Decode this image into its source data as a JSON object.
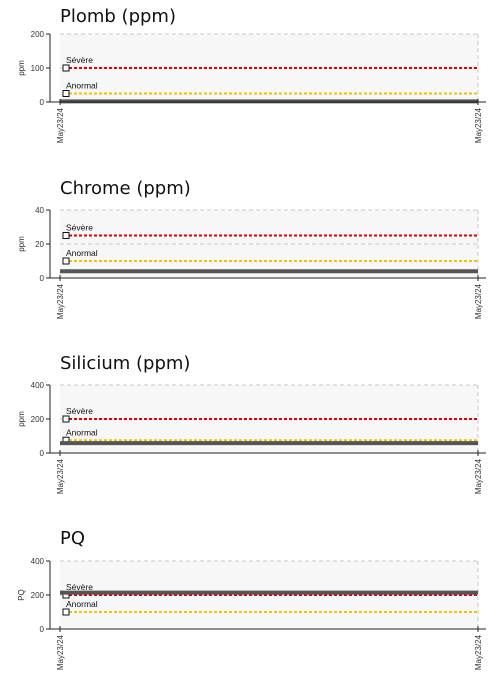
{
  "chart_data": [
    {
      "type": "line",
      "title": "Plomb (ppm)",
      "ylabel": "ppm",
      "ylim": [
        0,
        200
      ],
      "yticks": [
        "0",
        "100",
        "200"
      ],
      "xticks": [
        "May23/24",
        "May23/24"
      ],
      "grid": "dashed",
      "thresholds": [
        {
          "name": "Sévère",
          "value": 100,
          "color": "#e00000"
        },
        {
          "name": "Anormal",
          "value": 25,
          "color": "#f2c200"
        }
      ],
      "series": [
        {
          "values": [
            2,
            2
          ],
          "color": "#555555"
        }
      ]
    },
    {
      "type": "line",
      "title": "Chrome (ppm)",
      "ylabel": "ppm",
      "ylim": [
        0,
        40
      ],
      "yticks": [
        "0",
        "20",
        "40"
      ],
      "xticks": [
        "May23/24",
        "May23/24"
      ],
      "grid": "dashed",
      "thresholds": [
        {
          "name": "Sévère",
          "value": 25,
          "color": "#e00000"
        },
        {
          "name": "Anormal",
          "value": 10,
          "color": "#f2c200"
        }
      ],
      "series": [
        {
          "values": [
            4,
            4
          ],
          "color": "#555555"
        }
      ]
    },
    {
      "type": "line",
      "title": "Silicium (ppm)",
      "ylabel": "ppm",
      "ylim": [
        0,
        400
      ],
      "yticks": [
        "0",
        "200",
        "400"
      ],
      "xticks": [
        "May23/24",
        "May23/24"
      ],
      "grid": "dashed",
      "thresholds": [
        {
          "name": "Sévère",
          "value": 200,
          "color": "#e00000"
        },
        {
          "name": "Anormal",
          "value": 75,
          "color": "#f2c200"
        }
      ],
      "series": [
        {
          "values": [
            58,
            58
          ],
          "color": "#555555"
        }
      ]
    },
    {
      "type": "line",
      "title": "PQ",
      "ylabel": "PQ",
      "ylim": [
        0,
        400
      ],
      "yticks": [
        "0",
        "200",
        "400"
      ],
      "xticks": [
        "May23/24",
        "May23/24"
      ],
      "grid": "dashed",
      "thresholds": [
        {
          "name": "Sévère",
          "value": 200,
          "color": "#e00000"
        },
        {
          "name": "Anormal",
          "value": 100,
          "color": "#f2c200"
        }
      ],
      "series": [
        {
          "values": [
            214,
            214
          ],
          "color": "#555555"
        }
      ]
    }
  ]
}
